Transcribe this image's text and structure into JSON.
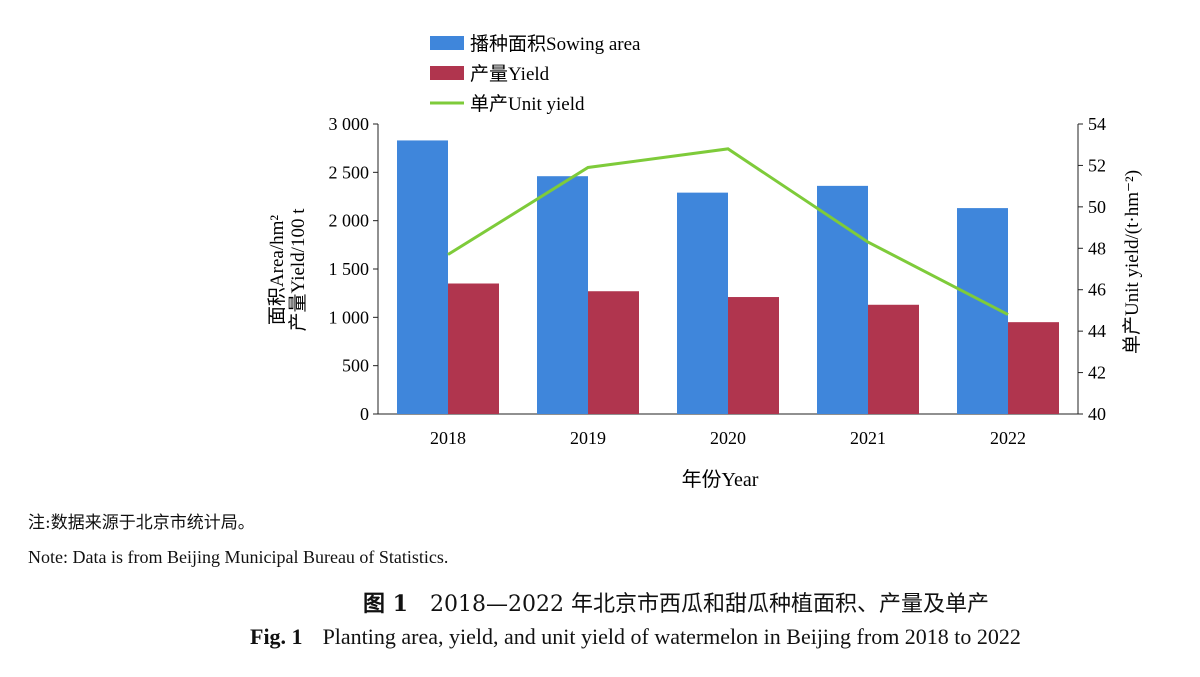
{
  "chart_data": {
    "type": "bar",
    "categories": [
      "2018",
      "2019",
      "2020",
      "2021",
      "2022"
    ],
    "series": [
      {
        "name": "播种面积Sowing area",
        "kind": "bar",
        "axis": "left",
        "color": "#3f86db",
        "values": [
          2830,
          2460,
          2290,
          2360,
          2130
        ]
      },
      {
        "name": "产量Yield",
        "kind": "bar",
        "axis": "left",
        "color": "#b0354e",
        "values": [
          1350,
          1270,
          1210,
          1130,
          950
        ]
      },
      {
        "name": "单产Unit yield",
        "kind": "line",
        "axis": "right",
        "color": "#7ecb3a",
        "values": [
          47.7,
          51.9,
          52.8,
          48.3,
          44.8
        ]
      }
    ],
    "xlabel": "年份Year",
    "ylabel_left_line1": "面积Area/hm²",
    "ylabel_left_line2": "产量Yield/100 t",
    "ylabel_right": "单产Unit yield/(t·hm⁻²)",
    "ylim_left": [
      0,
      3000
    ],
    "ylim_right": [
      40,
      54
    ],
    "yticks_left": [
      "0",
      "500",
      "1 000",
      "1 500",
      "2 000",
      "2 500",
      "3 000"
    ],
    "yticks_right": [
      "40",
      "42",
      "44",
      "46",
      "48",
      "50",
      "52",
      "54"
    ],
    "legend_placement": "top-left",
    "grid": false
  },
  "note_cn": "注:数据来源于北京市统计局。",
  "note_en": "Note: Data is from Beijing Municipal Bureau of Statistics.",
  "caption_cn_label": "图 1",
  "caption_cn_text": "2018—2022 年北京市西瓜和甜瓜种植面积、产量及单产",
  "caption_en_label": "Fig. 1",
  "caption_en_text": "Planting area, yield, and unit yield of watermelon in Beijing from 2018 to 2022"
}
